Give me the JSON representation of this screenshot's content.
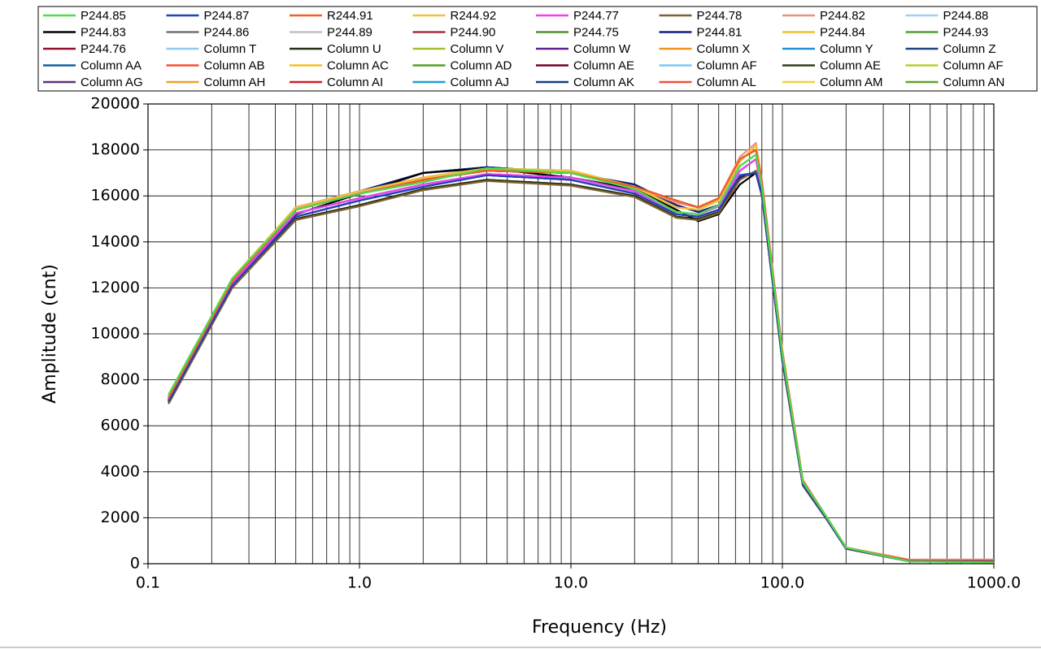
{
  "chart_data": {
    "type": "line",
    "xlabel": "Frequency (Hz)",
    "ylabel": "Amplitude  (cnt)",
    "x": [
      0.125,
      0.25,
      0.5,
      1,
      2,
      4,
      10,
      20,
      31.5,
      40,
      50,
      63,
      75,
      80,
      100,
      125,
      160,
      200,
      400,
      1000
    ],
    "xlim": [
      0.1,
      1000
    ],
    "xscale": "log",
    "xticks": [
      0.1,
      {
        "value": 1,
        "label": "1.0"
      },
      {
        "value": 10,
        "label": "10.0"
      },
      {
        "value": 100,
        "label": "100.0"
      },
      {
        "value": 1000,
        "label": "1000.0"
      }
    ],
    "xticks_minor": [
      0.2,
      0.3,
      0.4,
      0.5,
      0.6,
      0.7,
      0.8,
      0.9,
      2,
      3,
      4,
      5,
      6,
      7,
      8,
      9,
      20,
      30,
      40,
      50,
      60,
      70,
      80,
      90,
      200,
      300,
      400,
      500,
      600,
      700,
      800,
      900
    ],
    "ylim": [
      0,
      20000
    ],
    "yticks": [
      0,
      2000,
      4000,
      6000,
      8000,
      10000,
      12000,
      14000,
      16000,
      18000,
      20000
    ],
    "grid": true,
    "legend": "top",
    "series": [
      {
        "name": "P244.85",
        "color": "#4cdc4c",
        "values": [
          7350,
          12400,
          15400,
          16100,
          16600,
          17200,
          17000,
          16300,
          15300,
          15200,
          15600,
          17300,
          17800,
          16400,
          9100,
          3550,
          2100,
          700,
          100,
          60
        ]
      },
      {
        "name": "P244.87",
        "color": "#2040c0",
        "values": [
          7050,
          12100,
          15100,
          15800,
          16400,
          16900,
          16700,
          16100,
          15200,
          15100,
          15400,
          16900,
          17000,
          16100,
          8900,
          3450,
          2030,
          670,
          110,
          90
        ]
      },
      {
        "name": "R244.91",
        "color": "#f06020",
        "values": [
          7200,
          12300,
          15400,
          16100,
          16700,
          17100,
          17000,
          16400,
          15800,
          15500,
          15900,
          17600,
          18000,
          16600,
          9200,
          3600,
          2100,
          700,
          150,
          150
        ]
      },
      {
        "name": "R244.92",
        "color": "#f0c040",
        "values": [
          7300,
          12400,
          15500,
          16200,
          16800,
          17200,
          17100,
          16400,
          15500,
          15400,
          15800,
          17500,
          18200,
          16500,
          9200,
          3600,
          2100,
          700,
          150,
          150
        ]
      },
      {
        "name": "P244.77",
        "color": "#f040f0",
        "values": [
          7150,
          12200,
          15250,
          15900,
          16500,
          16950,
          16800,
          16200,
          15300,
          15200,
          15550,
          17100,
          17600,
          16200,
          9000,
          3500,
          2050,
          680,
          120,
          100
        ]
      },
      {
        "name": "P244.78",
        "color": "#806030",
        "values": [
          6950,
          12000,
          14950,
          15550,
          16250,
          16650,
          16450,
          15950,
          15050,
          14950,
          15250,
          16700,
          17100,
          16000,
          8800,
          3400,
          2000,
          650,
          100,
          80
        ]
      },
      {
        "name": "P244.82",
        "color": "#f09080",
        "values": [
          7250,
          12350,
          15450,
          16150,
          16750,
          17150,
          17050,
          16400,
          15700,
          15500,
          15900,
          17700,
          18300,
          16700,
          9300,
          3650,
          2100,
          700,
          180,
          180
        ]
      },
      {
        "name": "P244.88",
        "color": "#a0d0f0",
        "values": [
          7150,
          12200,
          15250,
          15900,
          16500,
          16950,
          16800,
          16200,
          15300,
          15200,
          15550,
          17100,
          17600,
          16200,
          9000,
          3500,
          2050,
          680,
          120,
          100
        ]
      },
      {
        "name": "P244.83",
        "color": "#000000",
        "values": [
          7100,
          12100,
          15200,
          16100,
          17000,
          17200,
          16800,
          16300,
          15400,
          14900,
          15200,
          16500,
          17000,
          16200,
          9000,
          3500,
          2050,
          680,
          120,
          100
        ]
      },
      {
        "name": "P244.86",
        "color": "#707070",
        "values": [
          7150,
          12200,
          15250,
          15900,
          16500,
          16950,
          16800,
          16200,
          15300,
          15200,
          15550,
          17100,
          17600,
          16200,
          9000,
          3500,
          2050,
          680,
          120,
          100
        ]
      },
      {
        "name": "P244.89",
        "color": "#c0c0c0",
        "values": [
          7150,
          12200,
          15250,
          15900,
          16500,
          16950,
          16800,
          16200,
          15300,
          15200,
          15550,
          17100,
          17600,
          16200,
          9000,
          3500,
          2050,
          680,
          120,
          100
        ]
      },
      {
        "name": "P244.90",
        "color": "#a03040",
        "values": [
          7200,
          12300,
          15400,
          16100,
          16700,
          17100,
          17000,
          16400,
          15800,
          15500,
          15900,
          17600,
          18000,
          16600,
          9200,
          3600,
          2100,
          700,
          150,
          150
        ]
      },
      {
        "name": "P244.75",
        "color": "#509030",
        "values": [
          7150,
          12200,
          15250,
          15900,
          16500,
          16950,
          16800,
          16200,
          15300,
          15200,
          15550,
          17100,
          17600,
          16200,
          9000,
          3500,
          2050,
          680,
          120,
          100
        ]
      },
      {
        "name": "P244.81",
        "color": "#102080",
        "values": [
          7100,
          12150,
          15500,
          16200,
          17000,
          17250,
          17000,
          16500,
          15600,
          15300,
          15600,
          16800,
          17000,
          16300,
          9100,
          3550,
          2050,
          690,
          130,
          110
        ]
      },
      {
        "name": "P244.84",
        "color": "#f0c030",
        "values": [
          7300,
          12400,
          15500,
          16200,
          16800,
          17200,
          17100,
          16400,
          15500,
          15400,
          15800,
          17500,
          18200,
          16500,
          9200,
          3600,
          2100,
          700,
          150,
          150
        ]
      },
      {
        "name": "P244.93",
        "color": "#50a030",
        "values": [
          7150,
          12200,
          15250,
          15900,
          16500,
          16950,
          16800,
          16200,
          15300,
          15200,
          15550,
          17100,
          17600,
          16200,
          9000,
          3500,
          2050,
          680,
          120,
          100
        ]
      },
      {
        "name": "P244.76",
        "color": "#901030",
        "values": [
          7200,
          12300,
          15400,
          16100,
          16700,
          17100,
          17000,
          16400,
          15800,
          15500,
          15900,
          17600,
          18000,
          16600,
          9200,
          3600,
          2100,
          700,
          150,
          150
        ]
      },
      {
        "name": "Column T",
        "color": "#90c8f0",
        "values": [
          7150,
          12200,
          15250,
          15900,
          16500,
          16950,
          16800,
          16200,
          15300,
          15200,
          15550,
          17100,
          17600,
          16200,
          9000,
          3500,
          2050,
          680,
          120,
          100
        ]
      },
      {
        "name": "Column U",
        "color": "#203010",
        "values": [
          7000,
          12000,
          15000,
          15600,
          16300,
          16700,
          16500,
          16000,
          15100,
          15000,
          15300,
          16800,
          17000,
          16000,
          8800,
          3400,
          2000,
          650,
          100,
          80
        ]
      },
      {
        "name": "Column V",
        "color": "#a0c030",
        "values": [
          7300,
          12400,
          15500,
          16200,
          16800,
          17200,
          17100,
          16400,
          15500,
          15400,
          15800,
          17500,
          18200,
          16500,
          9200,
          3600,
          2100,
          700,
          150,
          150
        ]
      },
      {
        "name": "Column W",
        "color": "#602090",
        "values": [
          7050,
          12100,
          15100,
          15800,
          16400,
          16900,
          16700,
          16100,
          15200,
          15100,
          15400,
          16900,
          17000,
          16100,
          8900,
          3450,
          2030,
          670,
          110,
          90
        ]
      },
      {
        "name": "Column X",
        "color": "#f09020",
        "values": [
          7300,
          12400,
          15500,
          16200,
          16800,
          17200,
          17100,
          16400,
          15500,
          15400,
          15800,
          17500,
          18200,
          16500,
          9200,
          3600,
          2100,
          700,
          150,
          150
        ]
      },
      {
        "name": "Column Y",
        "color": "#2090d0",
        "values": [
          7150,
          12200,
          15250,
          15900,
          16500,
          16950,
          16800,
          16200,
          15300,
          15200,
          15550,
          17100,
          17600,
          16200,
          9000,
          3500,
          2050,
          680,
          120,
          100
        ]
      },
      {
        "name": "Column Z",
        "color": "#204080",
        "values": [
          7100,
          12150,
          15500,
          16200,
          17000,
          17250,
          17000,
          16500,
          15600,
          15300,
          15600,
          16800,
          17000,
          16300,
          9100,
          3550,
          2050,
          690,
          130,
          110
        ]
      },
      {
        "name": "Column AA",
        "color": "#1060a0",
        "values": [
          7150,
          12200,
          15250,
          15900,
          16500,
          16950,
          16800,
          16200,
          15300,
          15200,
          15550,
          17100,
          17600,
          16200,
          9000,
          3500,
          2050,
          680,
          120,
          100
        ]
      },
      {
        "name": "Column AB",
        "color": "#f05030",
        "values": [
          7200,
          12300,
          15400,
          16100,
          16700,
          17100,
          17000,
          16400,
          15800,
          15500,
          15900,
          17600,
          18000,
          16600,
          9200,
          3600,
          2100,
          700,
          150,
          150
        ]
      },
      {
        "name": "Column AC",
        "color": "#f0c020",
        "values": [
          7300,
          12400,
          15500,
          16200,
          16800,
          17200,
          17100,
          16400,
          15500,
          15400,
          15800,
          17500,
          18200,
          16500,
          9200,
          3600,
          2100,
          700,
          150,
          150
        ]
      },
      {
        "name": "Column AD",
        "color": "#50a020",
        "values": [
          7150,
          12200,
          15250,
          15900,
          16500,
          16950,
          16800,
          16200,
          15300,
          15200,
          15550,
          17100,
          17600,
          16200,
          9000,
          3500,
          2050,
          680,
          120,
          100
        ]
      },
      {
        "name": "Column AE",
        "color": "#700020",
        "values": [
          7200,
          12300,
          15400,
          16100,
          16700,
          17100,
          17000,
          16400,
          15800,
          15500,
          15900,
          17600,
          18000,
          16600,
          9200,
          3600,
          2100,
          700,
          150,
          150
        ]
      },
      {
        "name": "Column AF",
        "color": "#80c8f0",
        "values": [
          7150,
          12200,
          15250,
          15900,
          16500,
          16950,
          16800,
          16200,
          15300,
          15200,
          15550,
          17100,
          17600,
          16200,
          9000,
          3500,
          2050,
          680,
          120,
          100
        ]
      },
      {
        "name": "Column AE",
        "color": "#304010",
        "values": [
          7000,
          12000,
          15000,
          15600,
          16300,
          16700,
          16500,
          16000,
          15100,
          15000,
          15300,
          16800,
          17000,
          16000,
          8800,
          3400,
          2000,
          650,
          100,
          80
        ]
      },
      {
        "name": "Column AF",
        "color": "#b0d030",
        "values": [
          7300,
          12400,
          15500,
          16200,
          16800,
          17200,
          17100,
          16400,
          15500,
          15400,
          15800,
          17500,
          18200,
          16500,
          9200,
          3600,
          2100,
          700,
          150,
          150
        ]
      },
      {
        "name": "Column AG",
        "color": "#603080",
        "values": [
          7050,
          12100,
          15100,
          15800,
          16400,
          16900,
          16700,
          16100,
          15200,
          15100,
          15400,
          16900,
          17000,
          16100,
          8900,
          3450,
          2030,
          670,
          110,
          90
        ]
      },
      {
        "name": "Column AH",
        "color": "#f0a030",
        "values": [
          7300,
          12400,
          15500,
          16200,
          16800,
          17200,
          17100,
          16400,
          15500,
          15400,
          15800,
          17500,
          18200,
          16500,
          9200,
          3600,
          2100,
          700,
          150,
          150
        ]
      },
      {
        "name": "Column AI",
        "color": "#d02020",
        "values": [
          7200,
          12300,
          15400,
          16100,
          16700,
          17100,
          17000,
          16400,
          15800,
          15500,
          15900,
          17600,
          18000,
          16600,
          9200,
          3600,
          2100,
          700,
          150,
          150
        ]
      },
      {
        "name": "Column AJ",
        "color": "#20a0d0",
        "values": [
          7150,
          12200,
          15250,
          15900,
          16500,
          16950,
          16800,
          16200,
          15300,
          15200,
          15550,
          17100,
          17600,
          16200,
          9000,
          3500,
          2050,
          680,
          120,
          100
        ]
      },
      {
        "name": "Column AK",
        "color": "#104080",
        "values": [
          7100,
          12150,
          15500,
          16200,
          17000,
          17250,
          17000,
          16500,
          15600,
          15300,
          15600,
          16800,
          17000,
          16300,
          9100,
          3550,
          2050,
          690,
          130,
          110
        ]
      },
      {
        "name": "Column AL",
        "color": "#f05040",
        "values": [
          7200,
          12300,
          15400,
          16100,
          16700,
          17100,
          17000,
          16400,
          15800,
          15500,
          15900,
          17600,
          18000,
          16600,
          9200,
          3600,
          2100,
          700,
          150,
          150
        ]
      },
      {
        "name": "Column AM",
        "color": "#f0d040",
        "values": [
          7300,
          12400,
          15500,
          16200,
          16800,
          17200,
          17100,
          16400,
          15500,
          15400,
          15800,
          17500,
          18200,
          16500,
          9200,
          3600,
          2100,
          700,
          150,
          150
        ]
      },
      {
        "name": "Column AN",
        "color": "#60a030",
        "values": [
          7350,
          12400,
          15400,
          16100,
          16600,
          17200,
          17000,
          16300,
          15300,
          15200,
          15600,
          17300,
          17800,
          16400,
          9100,
          3550,
          2100,
          700,
          100,
          60
        ]
      }
    ]
  }
}
